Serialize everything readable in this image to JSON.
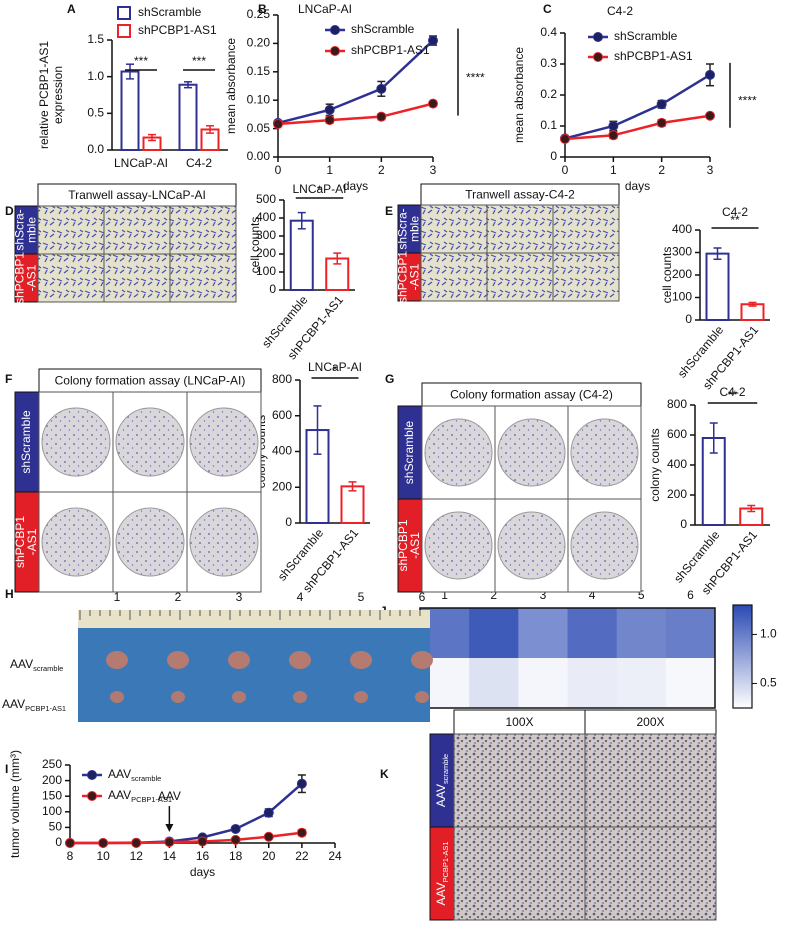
{
  "chart_data": [
    {
      "type": "bar",
      "panel": "A",
      "ylabel": [
        "relative PCBP1-AS1",
        "expression"
      ],
      "categories": [
        "LNCaP-AI",
        "C4-2"
      ],
      "series": [
        {
          "name": "shScramble",
          "color": "#2e3192",
          "values": [
            1.07,
            0.89
          ],
          "errors": [
            0.1,
            0.04
          ]
        },
        {
          "name": "shPCBP1-AS1",
          "color": "#ec2227",
          "values": [
            0.17,
            0.28
          ],
          "errors": [
            0.04,
            0.05
          ]
        }
      ],
      "annotations": [
        "***",
        "***"
      ],
      "annotation_color": "#ec2227",
      "ylim": [
        0,
        1.5
      ],
      "yticks": [
        {
          "value": 0,
          "label": "0.0"
        },
        0.5,
        {
          "value": 1,
          "label": "1.0"
        },
        1.5
      ],
      "legend": "top"
    },
    {
      "type": "line",
      "panel": "B",
      "title": "LNCaP-AI",
      "xlabel": "days",
      "ylabel": "mean absorbance",
      "x": [
        0,
        1,
        2,
        3
      ],
      "series": [
        {
          "name": "shScramble",
          "color": "#2e3192",
          "values": [
            0.06,
            0.083,
            0.12,
            0.205
          ],
          "errors": [
            0.004,
            0.01,
            0.013,
            0.008
          ]
        },
        {
          "name": "shPCBP1-AS1",
          "color": "#ec2227",
          "values": [
            0.058,
            0.065,
            0.071,
            0.094
          ],
          "errors": [
            0.004,
            0.005,
            0.005,
            0.004
          ]
        }
      ],
      "annotation": "****",
      "annotation_color": "#ec2227",
      "xlim": [
        0,
        3
      ],
      "xticks": [
        0,
        1,
        2,
        3
      ],
      "ylim": [
        0,
        0.25
      ],
      "yticks": [
        {
          "value": 0,
          "label": "0.00"
        },
        0.05,
        {
          "value": 0.1,
          "label": "0.10"
        },
        0.15,
        {
          "value": 0.2,
          "label": "0.20"
        },
        0.25
      ],
      "legend": "top"
    },
    {
      "type": "line",
      "panel": "C",
      "title": "C4-2",
      "xlabel": "days",
      "ylabel": "mean absorbance",
      "x": [
        0,
        1,
        2,
        3
      ],
      "series": [
        {
          "name": "shScramble",
          "color": "#2e3192",
          "values": [
            0.06,
            0.1,
            0.17,
            0.265
          ],
          "errors": [
            0.005,
            0.015,
            0.012,
            0.035
          ]
        },
        {
          "name": "shPCBP1-AS1",
          "color": "#ec2227",
          "values": [
            0.058,
            0.07,
            0.11,
            0.133
          ],
          "errors": [
            0.004,
            0.01,
            0.01,
            0.005
          ]
        }
      ],
      "annotation": "****",
      "annotation_color": "#ec2227",
      "xlim": [
        0,
        3
      ],
      "xticks": [
        0,
        1,
        2,
        3
      ],
      "ylim": [
        0,
        0.4
      ],
      "yticks": [
        0,
        0.1,
        0.2,
        0.3,
        0.4
      ],
      "legend": "top"
    },
    {
      "type": "bar",
      "title": "LNCaP-AI",
      "ylabel": "cell counts",
      "categories": [
        "shScramble",
        "shPCBP1-AS1"
      ],
      "values": [
        385,
        175
      ],
      "errors": [
        45,
        30
      ],
      "colors": [
        "#2e3192",
        "#ec2227"
      ],
      "annotation": "*",
      "annotation_color": "#ec2227",
      "ylim": [
        0,
        500
      ],
      "yticks": [
        0,
        100,
        200,
        300,
        400,
        500
      ]
    },
    {
      "type": "bar",
      "title": "C4-2",
      "ylabel": "cell counts",
      "categories": [
        "shScramble",
        "shPCBP1-AS1"
      ],
      "values": [
        295,
        70
      ],
      "errors": [
        25,
        8
      ],
      "colors": [
        "#2e3192",
        "#ec2227"
      ],
      "annotation": "**",
      "annotation_color": "#ec2227",
      "ylim": [
        0,
        400
      ],
      "yticks": [
        0,
        100,
        200,
        300,
        400
      ]
    },
    {
      "type": "bar",
      "title": "LNCaP-AI",
      "ylabel": "colony counts",
      "categories": [
        "shScramble",
        "shPCBP1-AS1"
      ],
      "values": [
        520,
        205
      ],
      "errors": [
        135,
        25
      ],
      "colors": [
        "#2e3192",
        "#ec2227"
      ],
      "annotation": "*",
      "annotation_color": "#ec2227",
      "ylim": [
        0,
        800
      ],
      "yticks": [
        0,
        200,
        400,
        600,
        800
      ]
    },
    {
      "type": "bar",
      "title": "C4-2",
      "ylabel": "colony counts",
      "categories": [
        "shScramble",
        "shPCBP1-AS1"
      ],
      "values": [
        580,
        110
      ],
      "errors": [
        100,
        20
      ],
      "colors": [
        "#2e3192",
        "#ec2227"
      ],
      "annotation": "**",
      "annotation_color": "#ec2227",
      "ylim": [
        0,
        800
      ],
      "yticks": [
        0,
        200,
        400,
        600,
        800
      ]
    },
    {
      "type": "line",
      "panel": "I",
      "xlabel": "days",
      "ylabel": "tumor volume (mm³)",
      "x": [
        8,
        10,
        12,
        14,
        16,
        18,
        20,
        22
      ],
      "series": [
        {
          "name": {
            "main": "AAV",
            "sub": "scramble"
          },
          "color": "#2e3192",
          "values": [
            0,
            0,
            1,
            5,
            18,
            45,
            97,
            190
          ],
          "errors": [
            0,
            0,
            0,
            1,
            3,
            6,
            12,
            28
          ]
        },
        {
          "name": {
            "main": "AAV",
            "sub": "PCBP1-AS1"
          },
          "color": "#ec2227",
          "values": [
            0,
            0,
            0,
            3,
            5,
            10,
            20,
            33
          ],
          "errors": [
            0,
            0,
            0,
            1,
            1,
            2,
            4,
            9
          ]
        }
      ],
      "annotation": {
        "text": "AAV",
        "x": 14
      },
      "xlim": [
        8,
        24
      ],
      "xticks": [
        8,
        10,
        12,
        14,
        16,
        18,
        20,
        22,
        24
      ],
      "ylim": [
        0,
        250
      ],
      "yticks": [
        0,
        50,
        100,
        150,
        200,
        250
      ],
      "legend": "top-left"
    },
    {
      "type": "heatmap",
      "panel": "J",
      "columns": [
        "1",
        "2",
        "3",
        "4",
        "5",
        "6"
      ],
      "rows": [
        {
          "main": "AAV",
          "sub": "scramble"
        },
        {
          "main": "AAV",
          "sub": "PCBP1-AS1"
        }
      ],
      "values": [
        [
          1.05,
          1.2,
          0.9,
          1.1,
          0.95,
          1.0
        ],
        [
          0.3,
          0.42,
          0.3,
          0.36,
          0.34,
          0.29
        ]
      ],
      "clim": [
        0.25,
        1.3
      ],
      "cticks": [
        {
          "value": 1,
          "label": "1.0"
        },
        0.5
      ],
      "cmap": [
        "#ffffff",
        "#2b4ab3"
      ]
    }
  ],
  "figures": [
    {
      "panel": "D",
      "title": "Tranwell assay-LNCaP-AI",
      "rows": [
        [
          "shScra-",
          "mble"
        ],
        [
          "shPCBP1",
          "-AS1"
        ]
      ]
    },
    {
      "panel": "E",
      "title": "Tranwell assay-C4-2",
      "rows": [
        [
          "shScra-",
          "mble"
        ],
        [
          "shPCBP1",
          "-AS1"
        ]
      ]
    },
    {
      "panel": "F",
      "title": "Colony formation assay (LNCaP-AI)",
      "rows": [
        [
          "shScramble"
        ],
        [
          "shPCBP1",
          "-AS1"
        ]
      ]
    },
    {
      "panel": "G",
      "title": "Colony formation assay (C4-2)",
      "rows": [
        [
          "shScramble"
        ],
        [
          "shPCBP1",
          "-AS1"
        ]
      ]
    },
    {
      "panel": "H",
      "columns": [
        "1",
        "2",
        "3",
        "4",
        "5",
        "6"
      ],
      "rows": [
        {
          "main": "AAV",
          "sub": "scramble"
        },
        {
          "main": "AAV",
          "sub": "PCBP1-AS1"
        }
      ]
    },
    {
      "panel": "K",
      "columns": [
        "100X",
        "200X"
      ],
      "rows": [
        {
          "main": "AAV",
          "sub": "scramble"
        },
        {
          "main": "AAV",
          "sub": "PCBP1-AS1"
        }
      ]
    }
  ]
}
